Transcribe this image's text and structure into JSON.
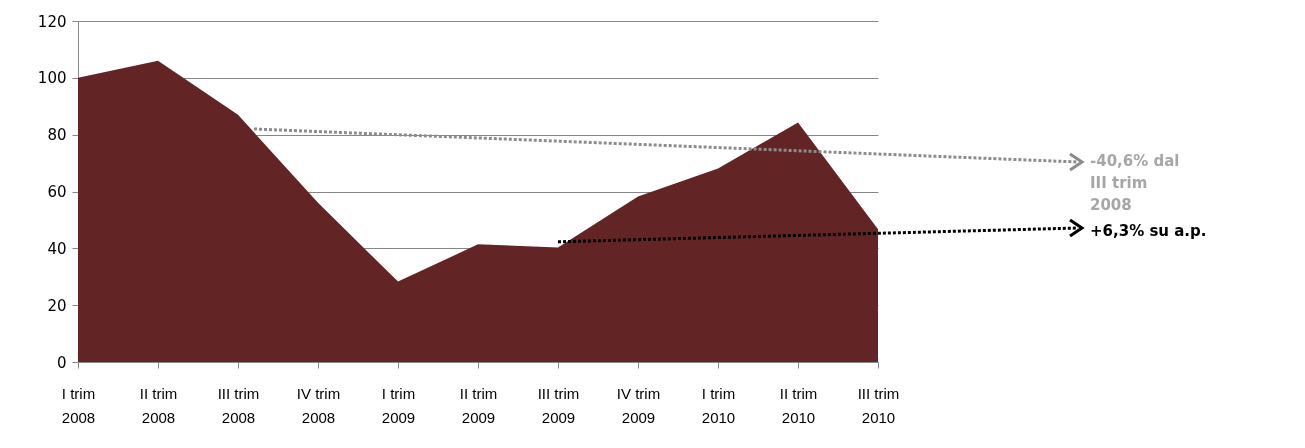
{
  "chart_data": {
    "type": "area",
    "categories": [
      "I trim 2008",
      "II trim 2008",
      "III trim 2008",
      "IV trim 2008",
      "I trim 2009",
      "II trim 2009",
      "III trim 2009",
      "IV trim 2009",
      "I trim 2010",
      "II trim 2010",
      "III trim 2010"
    ],
    "series": [
      {
        "color": "#632425",
        "values": [
          100,
          106,
          87,
          56,
          28.3,
          41.4,
          40.3,
          58.2,
          68.1,
          84.3,
          46.7
        ]
      }
    ],
    "ylim": [
      0,
      120
    ],
    "yticks": [
      0,
      20,
      40,
      60,
      80,
      100,
      120
    ],
    "grid": "y",
    "annotations": [
      "-40,6% dal III trim 2008",
      "+6,3% su a.p."
    ]
  }
}
